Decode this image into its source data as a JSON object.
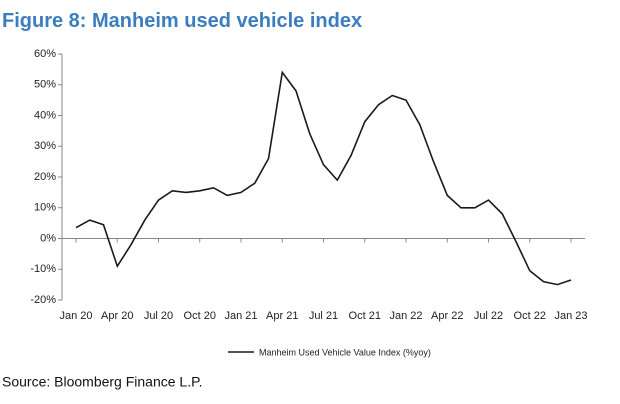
{
  "chart_data": {
    "type": "line",
    "title": "Figure 8: Manheim used vehicle index",
    "source": "Source: Bloomberg Finance L.P.",
    "categories": [
      "Jan 20",
      null,
      null,
      "Apr 20",
      null,
      null,
      "Jul 20",
      null,
      null,
      "Oct 20",
      null,
      null,
      "Jan 21",
      null,
      null,
      "Apr 21",
      null,
      null,
      "Jul 21",
      null,
      null,
      "Oct 21",
      null,
      null,
      "Jan 22",
      null,
      null,
      "Apr 22",
      null,
      null,
      "Jul 22",
      null,
      null,
      "Oct 22",
      null,
      null,
      "Jan 23"
    ],
    "series": [
      {
        "name": "Manheim Used Vehicle Value Index (%yoy)",
        "color": "#1a1a1a",
        "values": [
          3.5,
          6,
          4.5,
          -9,
          -2,
          6,
          12.5,
          15.5,
          15,
          15.5,
          16.5,
          14,
          15,
          18,
          26,
          54,
          48,
          34,
          24,
          19,
          27,
          38,
          43.5,
          46.5,
          45,
          37,
          25,
          14,
          10,
          10,
          12.5,
          8,
          -1,
          -10.5,
          -14,
          -15,
          -13.5
        ]
      }
    ],
    "ylim": [
      -20,
      60
    ],
    "yticks": [
      {
        "value": -20,
        "label": "-20%"
      },
      {
        "value": -10,
        "label": "-10%"
      },
      {
        "value": 0,
        "label": "0%"
      },
      {
        "value": 10,
        "label": "10%"
      },
      {
        "value": 20,
        "label": "20%"
      },
      {
        "value": 30,
        "label": "30%"
      },
      {
        "value": 40,
        "label": "40%"
      },
      {
        "value": 50,
        "label": "50%"
      },
      {
        "value": 60,
        "label": "60%"
      }
    ],
    "legend": "bottom"
  }
}
